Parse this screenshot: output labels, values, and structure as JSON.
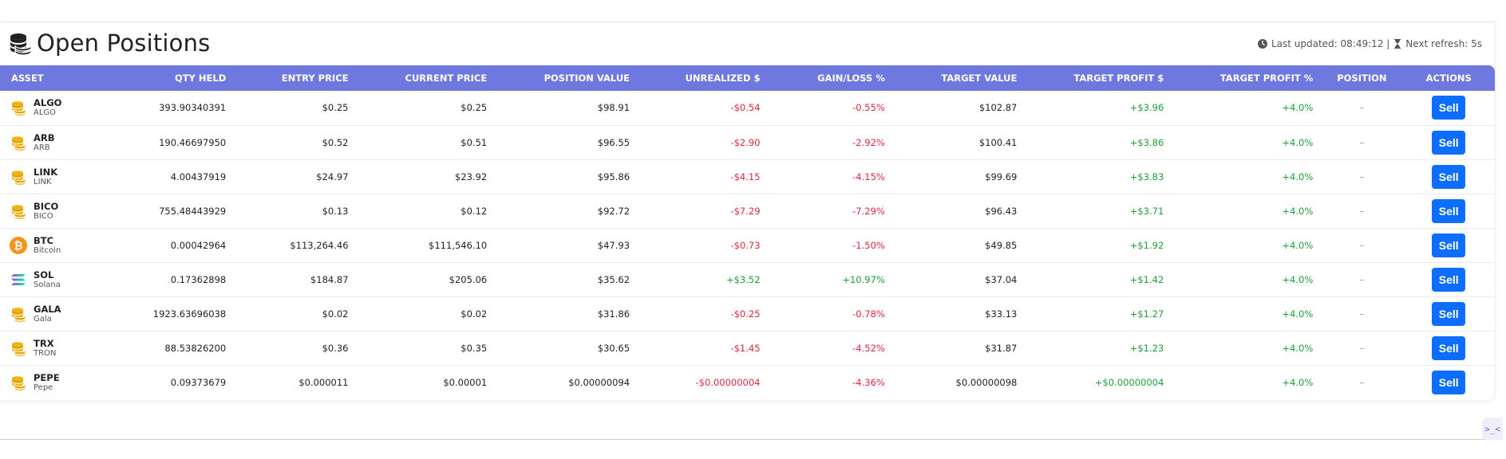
{
  "header": {
    "title": "Open Positions",
    "last_updated": "Last updated: 08:49:12 |",
    "next_refresh": "Next refresh: 5s"
  },
  "columns": [
    "ASSET",
    "QTY HELD",
    "ENTRY PRICE",
    "CURRENT PRICE",
    "POSITION VALUE",
    "UNREALIZED $",
    "GAIN/LOSS %",
    "TARGET VALUE",
    "TARGET PROFIT $",
    "TARGET PROFIT %",
    "POSITION",
    "ACTIONS"
  ],
  "rows": [
    {
      "symbol": "ALGO",
      "name": "ALGO",
      "icon": "coin-stack-icon",
      "qty": "393.90340391",
      "entry": "$0.25",
      "current": "$0.25",
      "value": "$98.91",
      "unrealized": "-$0.54",
      "gain_pct": "-0.55%",
      "target_value": "$102.87",
      "target_profit": "+$3.96",
      "target_pct": "+4.0%",
      "position": "–",
      "action": "Sell",
      "trend": "neg"
    },
    {
      "symbol": "ARB",
      "name": "ARB",
      "icon": "coin-stack-icon",
      "qty": "190.46697950",
      "entry": "$0.52",
      "current": "$0.51",
      "value": "$96.55",
      "unrealized": "-$2.90",
      "gain_pct": "-2.92%",
      "target_value": "$100.41",
      "target_profit": "+$3.86",
      "target_pct": "+4.0%",
      "position": "–",
      "action": "Sell",
      "trend": "neg"
    },
    {
      "symbol": "LINK",
      "name": "LINK",
      "icon": "coin-stack-icon",
      "qty": "4.00437919",
      "entry": "$24.97",
      "current": "$23.92",
      "value": "$95.86",
      "unrealized": "-$4.15",
      "gain_pct": "-4.15%",
      "target_value": "$99.69",
      "target_profit": "+$3.83",
      "target_pct": "+4.0%",
      "position": "–",
      "action": "Sell",
      "trend": "neg"
    },
    {
      "symbol": "BICO",
      "name": "BICO",
      "icon": "coin-stack-icon",
      "qty": "755.48443929",
      "entry": "$0.13",
      "current": "$0.12",
      "value": "$92.72",
      "unrealized": "-$7.29",
      "gain_pct": "-7.29%",
      "target_value": "$96.43",
      "target_profit": "+$3.71",
      "target_pct": "+4.0%",
      "position": "–",
      "action": "Sell",
      "trend": "neg"
    },
    {
      "symbol": "BTC",
      "name": "Bitcoin",
      "icon": "bitcoin-icon",
      "qty": "0.00042964",
      "entry": "$113,264.46",
      "current": "$111,546.10",
      "value": "$47.93",
      "unrealized": "-$0.73",
      "gain_pct": "-1.50%",
      "target_value": "$49.85",
      "target_profit": "+$1.92",
      "target_pct": "+4.0%",
      "position": "–",
      "action": "Sell",
      "trend": "neg"
    },
    {
      "symbol": "SOL",
      "name": "Solana",
      "icon": "solana-icon",
      "qty": "0.17362898",
      "entry": "$184.87",
      "current": "$205.06",
      "value": "$35.62",
      "unrealized": "+$3.52",
      "gain_pct": "+10.97%",
      "target_value": "$37.04",
      "target_profit": "+$1.42",
      "target_pct": "+4.0%",
      "position": "–",
      "action": "Sell",
      "trend": "pos"
    },
    {
      "symbol": "GALA",
      "name": "Gala",
      "icon": "coin-stack-icon",
      "qty": "1923.63696038",
      "entry": "$0.02",
      "current": "$0.02",
      "value": "$31.86",
      "unrealized": "-$0.25",
      "gain_pct": "-0.78%",
      "target_value": "$33.13",
      "target_profit": "+$1.27",
      "target_pct": "+4.0%",
      "position": "–",
      "action": "Sell",
      "trend": "neg"
    },
    {
      "symbol": "TRX",
      "name": "TRON",
      "icon": "coin-stack-icon",
      "qty": "88.53826200",
      "entry": "$0.36",
      "current": "$0.35",
      "value": "$30.65",
      "unrealized": "-$1.45",
      "gain_pct": "-4.52%",
      "target_value": "$31.87",
      "target_profit": "+$1.23",
      "target_pct": "+4.0%",
      "position": "–",
      "action": "Sell",
      "trend": "neg"
    },
    {
      "symbol": "PEPE",
      "name": "Pepe",
      "icon": "coin-stack-icon",
      "qty": "0.09373679",
      "entry": "$0.000011",
      "current": "$0.00001",
      "value": "$0.00000094",
      "unrealized": "-$0.00000004",
      "gain_pct": "-4.36%",
      "target_value": "$0.00000098",
      "target_profit": "+$0.00000004",
      "target_pct": "+4.0%",
      "position": "–",
      "action": "Sell",
      "trend": "neg"
    }
  ],
  "floating_button": {
    "label": ">_<",
    "icon": "terminal-icon"
  },
  "colors": {
    "header_bg": "#6f78df",
    "negative": "#d9283b",
    "positive": "#1f9d3a",
    "sell_button": "#0d6efd",
    "coin_gold": "#f0b30f",
    "bitcoin_orange": "#f7931a"
  }
}
